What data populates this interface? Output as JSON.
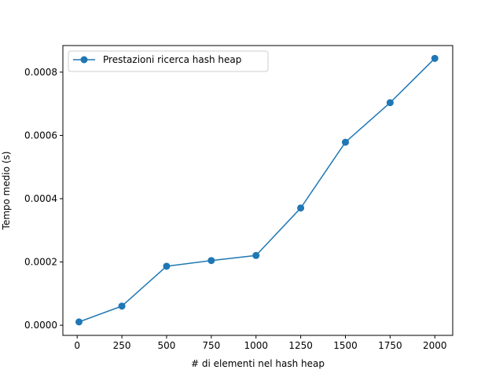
{
  "chart_data": {
    "type": "line",
    "title": "",
    "xlabel": "# di elementi nel hash heap",
    "ylabel": "Tempo medio (s)",
    "xlim": [
      -80,
      2100
    ],
    "ylim": [
      -3.2e-05,
      0.000884
    ],
    "xticks": [
      0,
      250,
      500,
      750,
      1000,
      1250,
      1500,
      1750,
      2000
    ],
    "xtick_labels": [
      "0",
      "250",
      "500",
      "750",
      "1000",
      "1250",
      "1500",
      "1750",
      "2000"
    ],
    "yticks": [
      0.0,
      0.0002,
      0.0004,
      0.0006,
      0.0008
    ],
    "ytick_labels": [
      "0.0000",
      "0.0002",
      "0.0004",
      "0.0006",
      "0.0008"
    ],
    "grid": false,
    "legend_position": "upper-left",
    "series": [
      {
        "name": "Prestazioni ricerca hash heap",
        "color": "#1f77b4",
        "marker": "circle",
        "x": [
          10,
          250,
          500,
          750,
          1000,
          1250,
          1500,
          1750,
          2000
        ],
        "y": [
          1.05e-05,
          6.05e-05,
          0.0001865,
          0.0002045,
          0.0002205,
          0.0003705,
          0.0005785,
          0.0007035,
          0.0008435
        ]
      }
    ]
  }
}
